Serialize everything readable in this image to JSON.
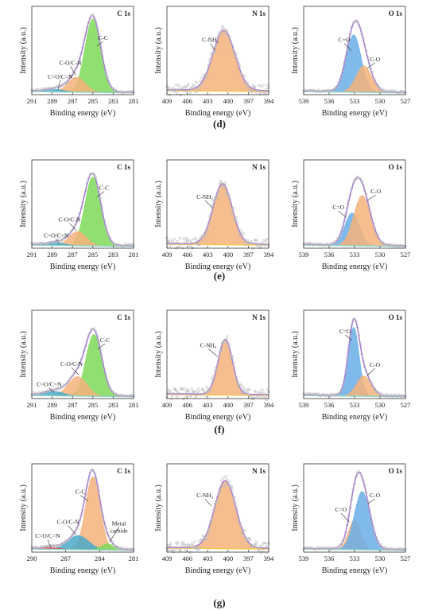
{
  "ylabel": "Intensity (a.u.)",
  "xlabel": "Binding energy (eV)",
  "colors": {
    "green": "#7ed957",
    "orange": "#f4b27a",
    "blue": "#6aaee6",
    "teal": "#4aa9c9",
    "yellow": "#f2c94c",
    "envelope": "#a57fd6",
    "raw": "#bdbdbd",
    "red": "#e05050"
  },
  "rows": [
    {
      "label": "(d)",
      "panels": [
        {
          "type": "line",
          "title": "C 1s",
          "xlim": [
            291,
            281
          ],
          "xticks": [
            291,
            289,
            287,
            285,
            283,
            281
          ],
          "peaks": [
            {
              "name": "C-C",
              "center": 285.0,
              "width": 1.1,
              "height": 0.83,
              "color": "green"
            },
            {
              "name": "C-O/C-N",
              "center": 286.6,
              "width": 1.2,
              "height": 0.17,
              "color": "orange"
            },
            {
              "name": "C=O/C=N",
              "center": 288.7,
              "width": 1.2,
              "height": 0.03,
              "color": "teal"
            }
          ],
          "annotations": [
            {
              "text": "C-C",
              "x": 284.0,
              "y": 0.62,
              "tx": 284.6,
              "ty": 0.55
            },
            {
              "text": "C-O/C-N",
              "x": 287.2,
              "y": 0.34,
              "tx": 286.7,
              "ty": 0.22
            },
            {
              "text": "C=O/C=N",
              "x": 288.2,
              "y": 0.18,
              "tx": 288.4,
              "ty": 0.06
            }
          ]
        },
        {
          "type": "line",
          "title": "N 1s",
          "xlim": [
            409,
            394
          ],
          "xticks": [
            409,
            406,
            403,
            400,
            397,
            394
          ],
          "peaks": [
            {
              "name": "C-NH2",
              "center": 400.6,
              "width": 2.3,
              "height": 0.68,
              "color": "orange"
            }
          ],
          "baseline_color": "yellow",
          "raw": true,
          "annotations": [
            {
              "text": "C-NH₂",
              "x": 402.6,
              "y": 0.6,
              "tx": 401.9,
              "ty": 0.5
            }
          ]
        },
        {
          "type": "line",
          "title": "O 1s",
          "xlim": [
            539,
            527
          ],
          "xticks": [
            539,
            536,
            533,
            530,
            527
          ],
          "peaks": [
            {
              "name": "C=O",
              "center": 533.1,
              "width": 1.25,
              "height": 0.65,
              "color": "blue"
            },
            {
              "name": "C-O",
              "center": 531.9,
              "width": 1.3,
              "height": 0.3,
              "color": "orange"
            }
          ],
          "annotations": [
            {
              "text": "C=O",
              "x": 534.2,
              "y": 0.6,
              "tx": 533.4,
              "ty": 0.5
            },
            {
              "text": "C-O",
              "x": 530.6,
              "y": 0.38,
              "tx": 531.5,
              "ty": 0.3
            }
          ]
        }
      ]
    },
    {
      "label": "(e)",
      "panels": [
        {
          "type": "line",
          "title": "C 1s",
          "xlim": [
            291,
            281
          ],
          "xticks": [
            291,
            289,
            287,
            285,
            283,
            281
          ],
          "peaks": [
            {
              "name": "C-C",
              "center": 285.0,
              "width": 1.1,
              "height": 0.78,
              "color": "green"
            },
            {
              "name": "C-O/C-N",
              "center": 286.5,
              "width": 1.2,
              "height": 0.16,
              "color": "orange"
            },
            {
              "name": "C=O/C=N",
              "center": 288.6,
              "width": 1.2,
              "height": 0.03,
              "color": "teal"
            }
          ],
          "annotations": [
            {
              "text": "C-C",
              "x": 283.9,
              "y": 0.66,
              "tx": 284.6,
              "ty": 0.58
            },
            {
              "text": "C-O/C-N",
              "x": 287.3,
              "y": 0.3,
              "tx": 286.6,
              "ty": 0.2
            },
            {
              "text": "C=O/C=N",
              "x": 288.6,
              "y": 0.12,
              "tx": 288.3,
              "ty": 0.05
            }
          ]
        },
        {
          "type": "line",
          "title": "N 1s",
          "xlim": [
            409,
            394
          ],
          "xticks": [
            409,
            406,
            403,
            400,
            397,
            394
          ],
          "peaks": [
            {
              "name": "C-NH2",
              "center": 400.8,
              "width": 2.0,
              "height": 0.68,
              "color": "orange"
            }
          ],
          "baseline_color": "yellow",
          "raw": true,
          "annotations": [
            {
              "text": "C-NH₂",
              "x": 403.4,
              "y": 0.56,
              "tx": 402.3,
              "ty": 0.46
            }
          ]
        },
        {
          "type": "line",
          "title": "O 1s",
          "xlim": [
            539,
            527
          ],
          "xticks": [
            539,
            536,
            533,
            530,
            527
          ],
          "peaks": [
            {
              "name": "C=O",
              "center": 533.3,
              "width": 1.2,
              "height": 0.37,
              "color": "blue"
            },
            {
              "name": "C-O",
              "center": 532.1,
              "width": 1.4,
              "height": 0.57,
              "color": "orange"
            }
          ],
          "annotations": [
            {
              "text": "C=O",
              "x": 534.9,
              "y": 0.44,
              "tx": 534.0,
              "ty": 0.35
            },
            {
              "text": "C-O",
              "x": 530.5,
              "y": 0.62,
              "tx": 531.5,
              "ty": 0.54
            }
          ]
        }
      ]
    },
    {
      "label": "(f)",
      "panels": [
        {
          "type": "line",
          "title": "C 1s",
          "xlim": [
            291,
            281
          ],
          "xticks": [
            291,
            289,
            287,
            285,
            283,
            281
          ],
          "peaks": [
            {
              "name": "C-C",
              "center": 284.9,
              "width": 1.1,
              "height": 0.7,
              "color": "green"
            },
            {
              "name": "C-O/C-N",
              "center": 286.5,
              "width": 1.3,
              "height": 0.22,
              "color": "orange"
            },
            {
              "name": "C=O/C=N",
              "center": 288.8,
              "width": 1.3,
              "height": 0.05,
              "color": "teal"
            }
          ],
          "annotations": [
            {
              "text": "C-C",
              "x": 283.8,
              "y": 0.64,
              "tx": 284.5,
              "ty": 0.56
            },
            {
              "text": "C-O/C-N",
              "x": 287.1,
              "y": 0.37,
              "tx": 286.4,
              "ty": 0.27
            },
            {
              "text": "C=O/C=N",
              "x": 289.3,
              "y": 0.14,
              "tx": 288.8,
              "ty": 0.07
            }
          ]
        },
        {
          "type": "line",
          "title": "N 1s",
          "xlim": [
            409,
            394
          ],
          "xticks": [
            409,
            406,
            403,
            400,
            397,
            394
          ],
          "peaks": [
            {
              "name": "C-NH2",
              "center": 400.4,
              "width": 1.5,
              "height": 0.62,
              "color": "orange"
            }
          ],
          "baseline_color": "yellow",
          "raw": true,
          "annotations": [
            {
              "text": "C-NH₂",
              "x": 402.9,
              "y": 0.58,
              "tx": 401.6,
              "ty": 0.48
            }
          ]
        },
        {
          "type": "line",
          "title": "O 1s",
          "xlim": [
            539,
            527
          ],
          "xticks": [
            539,
            536,
            533,
            530,
            527
          ],
          "peaks": [
            {
              "name": "C=O",
              "center": 533.1,
              "width": 0.9,
              "height": 0.78,
              "color": "blue"
            },
            {
              "name": "C-O",
              "center": 531.9,
              "width": 1.2,
              "height": 0.23,
              "color": "orange"
            }
          ],
          "annotations": [
            {
              "text": "C=O",
              "x": 534.1,
              "y": 0.74,
              "tx": 533.3,
              "ty": 0.66
            },
            {
              "text": "C-O",
              "x": 530.6,
              "y": 0.36,
              "tx": 531.5,
              "ty": 0.26
            }
          ]
        }
      ]
    },
    {
      "label": "(g)",
      "panels": [
        {
          "type": "line",
          "title": "C 1s",
          "xlim": [
            290,
            281
          ],
          "xticks": [
            290,
            287,
            284,
            281
          ],
          "peaks": [
            {
              "name": "C-C",
              "center": 284.6,
              "width": 0.9,
              "height": 0.83,
              "color": "orange"
            },
            {
              "name": "C-O/C-N",
              "center": 285.9,
              "width": 1.3,
              "height": 0.16,
              "color": "teal"
            },
            {
              "name": "Metal carbide",
              "center": 283.3,
              "width": 0.8,
              "height": 0.07,
              "color": "green"
            },
            {
              "name": "C=O/C=N",
              "center": 288.3,
              "width": 1.1,
              "height": 0.02,
              "color": "red"
            }
          ],
          "annotations": [
            {
              "text": "C-C",
              "x": 285.7,
              "y": 0.66,
              "tx": 285.0,
              "ty": 0.58
            },
            {
              "text": "C-O/C-N",
              "x": 286.8,
              "y": 0.32,
              "tx": 286.1,
              "ty": 0.2
            },
            {
              "text": "Metal",
              "x": 282.3,
              "y": 0.3,
              "tx": 283.1,
              "ty": 0.12
            },
            {
              "text": "carbide",
              "x": 282.3,
              "y": 0.22
            },
            {
              "text": "C=O/C=N",
              "x": 288.6,
              "y": 0.16,
              "tx": 288.3,
              "ty": 0.05
            }
          ]
        },
        {
          "type": "line",
          "title": "N 1s",
          "xlim": [
            409,
            394
          ],
          "xticks": [
            409,
            406,
            403,
            400,
            397,
            394
          ],
          "peaks": [
            {
              "name": "C-NH2",
              "center": 400.4,
              "width": 2.2,
              "height": 0.76,
              "color": "orange"
            }
          ],
          "baseline_color": "yellow",
          "raw": true,
          "annotations": [
            {
              "text": "C-NH₂",
              "x": 403.4,
              "y": 0.62,
              "tx": 402.4,
              "ty": 0.52
            }
          ]
        },
        {
          "type": "line",
          "title": "O 1s",
          "xlim": [
            539,
            527
          ],
          "xticks": [
            539,
            536,
            533,
            530,
            527
          ],
          "peaks": [
            {
              "name": "C=O",
              "center": 533.0,
              "width": 1.0,
              "height": 0.34,
              "color": "orange"
            },
            {
              "name": "C-O",
              "center": 532.1,
              "width": 1.3,
              "height": 0.66,
              "color": "blue"
            }
          ],
          "annotations": [
            {
              "text": "C=O",
              "x": 534.6,
              "y": 0.46,
              "tx": 533.6,
              "ty": 0.34
            },
            {
              "text": "C-O",
              "x": 530.6,
              "y": 0.62,
              "tx": 531.4,
              "ty": 0.55
            }
          ]
        }
      ]
    }
  ]
}
